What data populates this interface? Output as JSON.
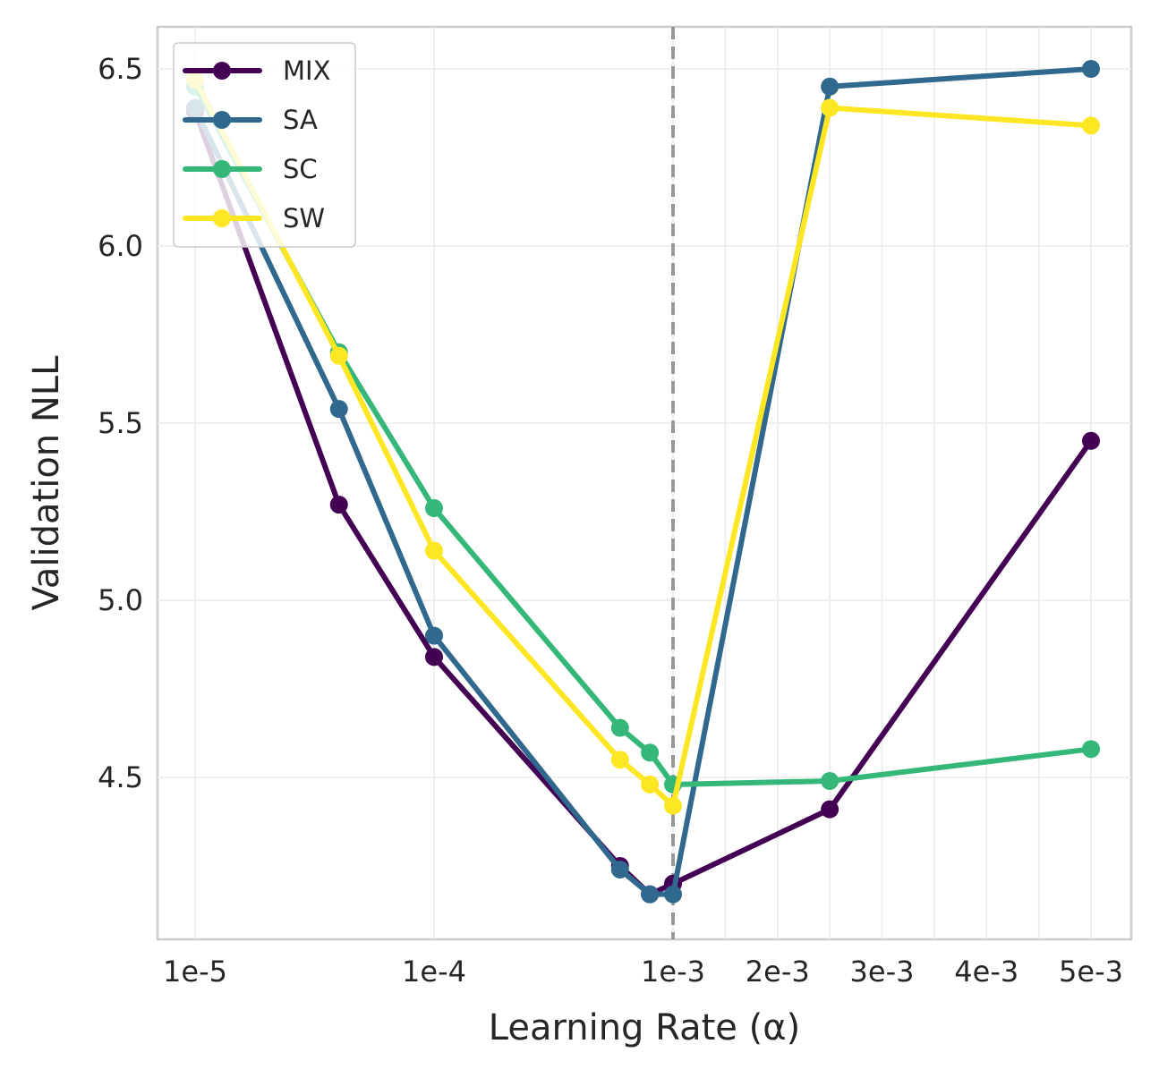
{
  "chart_data": {
    "type": "line",
    "title": "",
    "xlabel": "Learning Rate (α)",
    "ylabel": "Validation NLL",
    "x_scale": "piecewise: log-scaled from 1e-5 to 1e-3, linear from 1e-3 to 5e-3",
    "xlim": [
      8.5e-06,
      0.0055
    ],
    "ylim": [
      4.05,
      6.62
    ],
    "grid": true,
    "legend_position": "top-left",
    "reference_line": {
      "x": 0.001,
      "style": "dashed",
      "color": "#999999"
    },
    "x_ticks": [
      {
        "value": 1e-05,
        "label": "1e-5"
      },
      {
        "value": 0.0001,
        "label": "1e-4"
      },
      {
        "value": 0.001,
        "label": "1e-3"
      },
      {
        "value": 0.002,
        "label": "2e-3"
      },
      {
        "value": 0.003,
        "label": "3e-3"
      },
      {
        "value": 0.004,
        "label": "4e-3"
      },
      {
        "value": 0.005,
        "label": "5e-3"
      }
    ],
    "y_ticks": [
      {
        "value": 4.5,
        "label": "4.5"
      },
      {
        "value": 5.0,
        "label": "5.0"
      },
      {
        "value": 5.5,
        "label": "5.5"
      },
      {
        "value": 6.0,
        "label": "6.0"
      },
      {
        "value": 6.5,
        "label": "6.5"
      }
    ],
    "series": [
      {
        "name": "MIX",
        "color": "#440154",
        "points": [
          [
            1e-05,
            6.38
          ],
          [
            4e-05,
            5.27
          ],
          [
            0.0001,
            4.84
          ],
          [
            0.0006,
            4.25
          ],
          [
            0.0008,
            4.17
          ],
          [
            0.001,
            4.2
          ],
          [
            0.0025,
            4.41
          ],
          [
            0.005,
            5.45
          ]
        ]
      },
      {
        "name": "SA",
        "color": "#31688e",
        "points": [
          [
            1e-05,
            6.39
          ],
          [
            4e-05,
            5.54
          ],
          [
            0.0001,
            4.9
          ],
          [
            0.0006,
            4.24
          ],
          [
            0.0008,
            4.17
          ],
          [
            0.001,
            4.17
          ],
          [
            0.0025,
            6.45
          ],
          [
            0.005,
            6.5
          ]
        ]
      },
      {
        "name": "SC",
        "color": "#35b779",
        "points": [
          [
            1e-05,
            6.45
          ],
          [
            4e-05,
            5.7
          ],
          [
            0.0001,
            5.26
          ],
          [
            0.0006,
            4.64
          ],
          [
            0.0008,
            4.57
          ],
          [
            0.001,
            4.48
          ],
          [
            0.0025,
            4.49
          ],
          [
            0.005,
            4.58
          ]
        ]
      },
      {
        "name": "SW",
        "color": "#fde725",
        "points": [
          [
            1e-05,
            6.47
          ],
          [
            4e-05,
            5.69
          ],
          [
            0.0001,
            5.14
          ],
          [
            0.0006,
            4.55
          ],
          [
            0.0008,
            4.48
          ],
          [
            0.001,
            4.42
          ],
          [
            0.0025,
            6.39
          ],
          [
            0.005,
            6.34
          ]
        ]
      }
    ]
  }
}
